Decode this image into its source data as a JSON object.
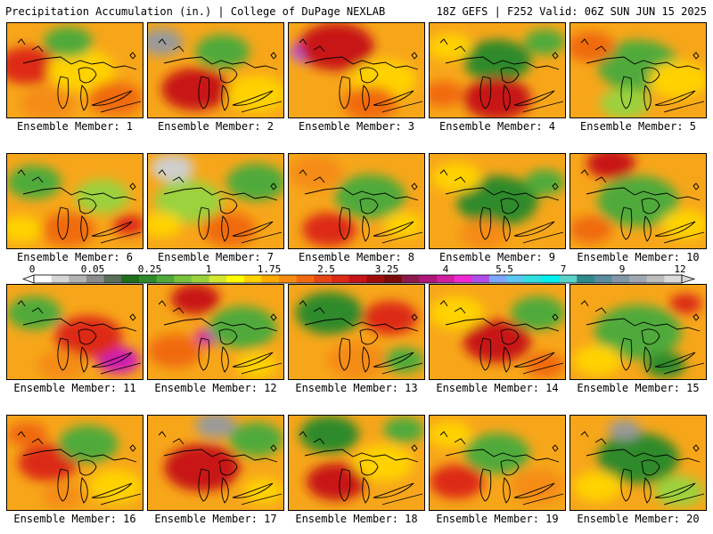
{
  "header": {
    "left": "Precipitation Accumulation (in.) | College of DuPage NEXLAB",
    "right": "18Z GEFS | F252 Valid: 06Z SUN JUN 15 2025"
  },
  "members": [
    {
      "label": "Ensemble Member: 1",
      "blobs": [
        [
          0.15,
          0.45,
          0.22,
          "#dd2a14"
        ],
        [
          0.55,
          0.5,
          0.25,
          "#ffd200"
        ],
        [
          0.45,
          0.2,
          0.18,
          "#4faa3a"
        ],
        [
          0.8,
          0.8,
          0.2,
          "#f06a10"
        ],
        [
          0.3,
          0.85,
          0.2,
          "#f58c12"
        ]
      ]
    },
    {
      "label": "Ensemble Member: 2",
      "blobs": [
        [
          0.3,
          0.62,
          0.13,
          "#cf1fb4"
        ],
        [
          0.1,
          0.2,
          0.16,
          "#9a9a9a"
        ],
        [
          0.55,
          0.3,
          0.2,
          "#4faa3a"
        ],
        [
          0.35,
          0.7,
          0.25,
          "#c81418"
        ],
        [
          0.8,
          0.75,
          0.22,
          "#ffd200"
        ]
      ]
    },
    {
      "label": "Ensemble Member: 3",
      "blobs": [
        [
          0.15,
          0.3,
          0.14,
          "#b04de8"
        ],
        [
          0.15,
          0.33,
          0.08,
          "#7fa6ff"
        ],
        [
          0.35,
          0.25,
          0.28,
          "#c81418"
        ],
        [
          0.7,
          0.6,
          0.24,
          "#ffd200"
        ],
        [
          0.6,
          0.85,
          0.2,
          "#f06a10"
        ]
      ]
    },
    {
      "label": "Ensemble Member: 4",
      "blobs": [
        [
          0.5,
          0.4,
          0.25,
          "#2e8a2b"
        ],
        [
          0.5,
          0.8,
          0.25,
          "#c81418"
        ],
        [
          0.15,
          0.25,
          0.16,
          "#ffd200"
        ],
        [
          0.85,
          0.2,
          0.15,
          "#4faa3a"
        ],
        [
          0.1,
          0.75,
          0.15,
          "#f06a10"
        ]
      ]
    },
    {
      "label": "Ensemble Member: 5",
      "blobs": [
        [
          0.5,
          0.45,
          0.3,
          "#4faa3a"
        ],
        [
          0.15,
          0.25,
          0.18,
          "#f06a10"
        ],
        [
          0.8,
          0.6,
          0.22,
          "#ffd200"
        ],
        [
          0.4,
          0.85,
          0.18,
          "#9bd23c"
        ]
      ]
    },
    {
      "label": "Ensemble Member: 6",
      "blobs": [
        [
          0.2,
          0.3,
          0.2,
          "#4faa3a"
        ],
        [
          0.7,
          0.45,
          0.2,
          "#9bd23c"
        ],
        [
          0.45,
          0.8,
          0.2,
          "#f06a10"
        ],
        [
          0.9,
          0.75,
          0.12,
          "#dd2a14"
        ],
        [
          0.1,
          0.8,
          0.16,
          "#ffd200"
        ]
      ]
    },
    {
      "label": "Ensemble Member: 7",
      "blobs": [
        [
          0.18,
          0.15,
          0.16,
          "#cfcfcf"
        ],
        [
          0.3,
          0.5,
          0.25,
          "#9bd23c"
        ],
        [
          0.8,
          0.3,
          0.22,
          "#4faa3a"
        ],
        [
          0.6,
          0.8,
          0.2,
          "#f06a10"
        ],
        [
          0.1,
          0.75,
          0.15,
          "#ffd200"
        ]
      ]
    },
    {
      "label": "Ensemble Member: 8",
      "blobs": [
        [
          0.2,
          0.2,
          0.2,
          "#f58c12"
        ],
        [
          0.6,
          0.45,
          0.26,
          "#4faa3a"
        ],
        [
          0.3,
          0.8,
          0.2,
          "#dd2a14"
        ],
        [
          0.85,
          0.75,
          0.15,
          "#ffd200"
        ]
      ]
    },
    {
      "label": "Ensemble Member: 9",
      "blobs": [
        [
          0.5,
          0.5,
          0.3,
          "#2e8a2b"
        ],
        [
          0.2,
          0.25,
          0.18,
          "#ffd200"
        ],
        [
          0.85,
          0.3,
          0.15,
          "#4faa3a"
        ],
        [
          0.4,
          0.85,
          0.18,
          "#f58c12"
        ]
      ]
    },
    {
      "label": "Ensemble Member: 10",
      "blobs": [
        [
          0.3,
          0.1,
          0.18,
          "#c81418"
        ],
        [
          0.5,
          0.5,
          0.3,
          "#4faa3a"
        ],
        [
          0.85,
          0.75,
          0.18,
          "#ffd200"
        ],
        [
          0.15,
          0.8,
          0.16,
          "#f06a10"
        ]
      ]
    },
    {
      "label": "Ensemble Member: 11",
      "blobs": [
        [
          0.82,
          0.8,
          0.16,
          "#cf1fb4"
        ],
        [
          0.3,
          0.35,
          0.1,
          "#cf1fb4"
        ],
        [
          0.6,
          0.55,
          0.25,
          "#dd2a14"
        ],
        [
          0.2,
          0.3,
          0.2,
          "#4faa3a"
        ],
        [
          0.4,
          0.85,
          0.18,
          "#f58c12"
        ]
      ]
    },
    {
      "label": "Ensemble Member: 12",
      "blobs": [
        [
          0.45,
          0.55,
          0.1,
          "#cf1fb4"
        ],
        [
          0.35,
          0.15,
          0.18,
          "#c81418"
        ],
        [
          0.7,
          0.45,
          0.25,
          "#4faa3a"
        ],
        [
          0.2,
          0.7,
          0.2,
          "#f06a10"
        ],
        [
          0.8,
          0.85,
          0.15,
          "#ffd200"
        ]
      ]
    },
    {
      "label": "Ensemble Member: 13",
      "blobs": [
        [
          0.3,
          0.3,
          0.25,
          "#2e8a2b"
        ],
        [
          0.75,
          0.35,
          0.2,
          "#dd2a14"
        ],
        [
          0.5,
          0.8,
          0.22,
          "#f58c12"
        ],
        [
          0.85,
          0.8,
          0.15,
          "#4faa3a"
        ]
      ]
    },
    {
      "label": "Ensemble Member: 14",
      "blobs": [
        [
          0.4,
          0.55,
          0.12,
          "#cf1fb4"
        ],
        [
          0.5,
          0.6,
          0.25,
          "#c81418"
        ],
        [
          0.2,
          0.3,
          0.2,
          "#ffd200"
        ],
        [
          0.8,
          0.3,
          0.2,
          "#4faa3a"
        ],
        [
          0.85,
          0.85,
          0.15,
          "#f06a10"
        ]
      ]
    },
    {
      "label": "Ensemble Member: 15",
      "blobs": [
        [
          0.5,
          0.5,
          0.32,
          "#4faa3a"
        ],
        [
          0.85,
          0.2,
          0.12,
          "#dd2a14"
        ],
        [
          0.2,
          0.8,
          0.18,
          "#ffd200"
        ],
        [
          0.7,
          0.85,
          0.15,
          "#2e8a2b"
        ]
      ]
    },
    {
      "label": "Ensemble Member: 16",
      "blobs": [
        [
          0.3,
          0.5,
          0.22,
          "#dd2a14"
        ],
        [
          0.6,
          0.3,
          0.22,
          "#4faa3a"
        ],
        [
          0.8,
          0.75,
          0.2,
          "#ffd200"
        ],
        [
          0.15,
          0.2,
          0.15,
          "#f06a10"
        ],
        [
          0.4,
          0.85,
          0.15,
          "#f58c12"
        ]
      ]
    },
    {
      "label": "Ensemble Member: 17",
      "blobs": [
        [
          0.3,
          0.55,
          0.14,
          "#cf1fb4"
        ],
        [
          0.4,
          0.55,
          0.28,
          "#c81418"
        ],
        [
          0.5,
          0.1,
          0.15,
          "#9a9a9a"
        ],
        [
          0.8,
          0.25,
          0.2,
          "#4faa3a"
        ],
        [
          0.85,
          0.8,
          0.15,
          "#ffd200"
        ]
      ]
    },
    {
      "label": "Ensemble Member: 18",
      "blobs": [
        [
          0.3,
          0.2,
          0.22,
          "#2e8a2b"
        ],
        [
          0.35,
          0.7,
          0.22,
          "#c81418"
        ],
        [
          0.7,
          0.5,
          0.22,
          "#ffd200"
        ],
        [
          0.85,
          0.15,
          0.15,
          "#4faa3a"
        ]
      ]
    },
    {
      "label": "Ensemble Member: 19",
      "blobs": [
        [
          0.5,
          0.4,
          0.24,
          "#4faa3a"
        ],
        [
          0.2,
          0.7,
          0.2,
          "#dd2a14"
        ],
        [
          0.8,
          0.75,
          0.2,
          "#f58c12"
        ],
        [
          0.15,
          0.2,
          0.16,
          "#ffd200"
        ]
      ]
    },
    {
      "label": "Ensemble Member: 20",
      "blobs": [
        [
          0.5,
          0.45,
          0.3,
          "#2e8a2b"
        ],
        [
          0.4,
          0.15,
          0.12,
          "#9a9a9a"
        ],
        [
          0.2,
          0.75,
          0.18,
          "#ffd200"
        ],
        [
          0.8,
          0.8,
          0.18,
          "#9bd23c"
        ]
      ]
    }
  ],
  "colorbar": {
    "colors": [
      "#ffffff",
      "#d6d6d6",
      "#b4b4b4",
      "#8c8c8c",
      "#5a6e5a",
      "#1e6e1e",
      "#2e8a2b",
      "#4faa3a",
      "#78c23c",
      "#9bd23c",
      "#d2e632",
      "#ffff00",
      "#ffd200",
      "#ffaa00",
      "#f58c12",
      "#f06a10",
      "#e64614",
      "#dd2a14",
      "#c81418",
      "#a00c0c",
      "#7e0a0a",
      "#8c1a4a",
      "#b0157a",
      "#d21ea0",
      "#f028d2",
      "#b04de8",
      "#7fa6ff",
      "#5ac8f0",
      "#30e0e0",
      "#00f0f0",
      "#5ad2c8",
      "#2e8a8c",
      "#5a8ca0",
      "#8296a8",
      "#a0a8b4",
      "#bebebe",
      "#dcdcdc"
    ],
    "ticks": [
      "0",
      "0.05",
      "0.25",
      "1",
      "1.75",
      "2.5",
      "3.25",
      "4",
      "5.5",
      "7",
      "9",
      "12"
    ]
  }
}
